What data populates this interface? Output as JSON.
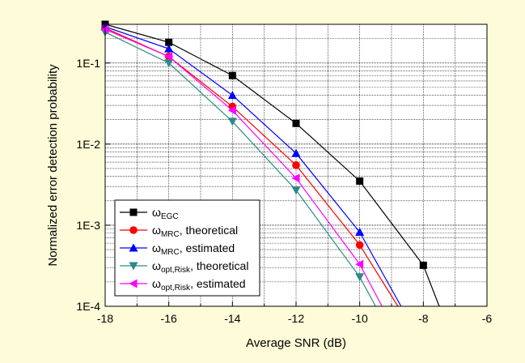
{
  "chart_data": {
    "type": "line",
    "title": "",
    "xlabel": "Average SNR (dB)",
    "ylabel": "Normalized error detection probability",
    "xlim": [
      -18,
      -6
    ],
    "ylim": [
      0.0001,
      0.3
    ],
    "y_scale": "log",
    "grid": true,
    "legend_position": "bottom-left",
    "x_ticks": [
      "-18",
      "-16",
      "-14",
      "-12",
      "-10",
      "-8",
      "-6"
    ],
    "y_ticks": [
      "1E-4",
      "1E-3",
      "1E-2",
      "1E-1"
    ],
    "series": [
      {
        "label_main": "ω",
        "label_sub": "EGC",
        "label_rest": "",
        "marker": "square",
        "color": "#000000",
        "points": [
          [
            -18,
            0.3
          ],
          [
            -16,
            0.18
          ],
          [
            -14,
            0.07
          ],
          [
            -12,
            0.018
          ],
          [
            -10,
            0.0035
          ],
          [
            -8,
            0.00032
          ],
          [
            -7.5,
            0.0001
          ]
        ]
      },
      {
        "label_main": "ω",
        "label_sub": "MRC",
        "label_rest": ", theoretical",
        "marker": "circle",
        "color": "#ff0000",
        "points": [
          [
            -18,
            0.27
          ],
          [
            -16,
            0.12
          ],
          [
            -14,
            0.029
          ],
          [
            -12,
            0.0055
          ],
          [
            -10,
            0.00057
          ],
          [
            -8.8,
            0.0001
          ]
        ]
      },
      {
        "label_main": "ω",
        "label_sub": "MRC",
        "label_rest": ", estimated",
        "marker": "triangle-up",
        "color": "#0000ff",
        "points": [
          [
            -18,
            0.28
          ],
          [
            -16,
            0.15
          ],
          [
            -14,
            0.04
          ],
          [
            -12,
            0.0077
          ],
          [
            -10,
            0.00082
          ],
          [
            -8.7,
            0.0001
          ]
        ]
      },
      {
        "label_main": "ω",
        "label_sub": "opt,Risk",
        "label_rest": ", theoretical",
        "marker": "triangle-down",
        "color": "#2a8a8a",
        "points": [
          [
            -18,
            0.24
          ],
          [
            -16,
            0.1
          ],
          [
            -14,
            0.019
          ],
          [
            -12,
            0.0027
          ],
          [
            -10,
            0.00023
          ],
          [
            -9.5,
            0.0001
          ]
        ]
      },
      {
        "label_main": "ω",
        "label_sub": "opt,Risk",
        "label_rest": ", estimated",
        "marker": "triangle-left",
        "color": "#ff00ff",
        "points": [
          [
            -18,
            0.26
          ],
          [
            -16,
            0.12
          ],
          [
            -14,
            0.026
          ],
          [
            -12,
            0.0038
          ],
          [
            -10,
            0.00033
          ],
          [
            -9.3,
            0.0001
          ]
        ]
      }
    ]
  }
}
